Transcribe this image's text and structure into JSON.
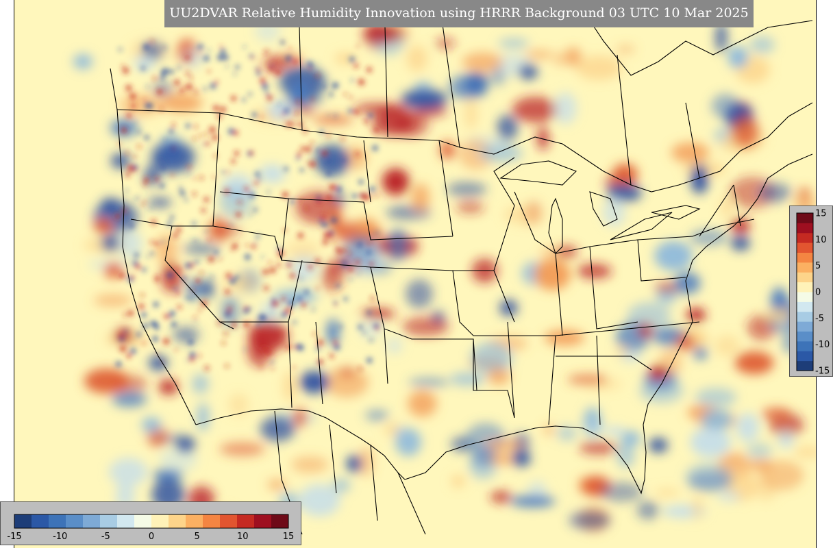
{
  "title": "UU2DVAR Relative Humidity Innovation using HRRR Background 03 UTC 10 Mar 2025",
  "colorbar": {
    "min": -15,
    "max": 15,
    "ticks": [
      "-15",
      "-10",
      "-5",
      "0",
      "5",
      "10",
      "15"
    ],
    "colors": [
      "#1d3d78",
      "#2b58a6",
      "#3d73b8",
      "#5a8ec8",
      "#7eaad6",
      "#a8cce4",
      "#d2e8f0",
      "#f5fbe6",
      "#fff2b8",
      "#fdd48a",
      "#fbb062",
      "#f48542",
      "#e25530",
      "#c52a22",
      "#9e0f20",
      "#6e0a18"
    ]
  },
  "map": {
    "background_color": "#fff7bc",
    "anomaly_blue": "#2c4fa0",
    "anomaly_red": "#b81d24",
    "border_color": "#000000"
  }
}
